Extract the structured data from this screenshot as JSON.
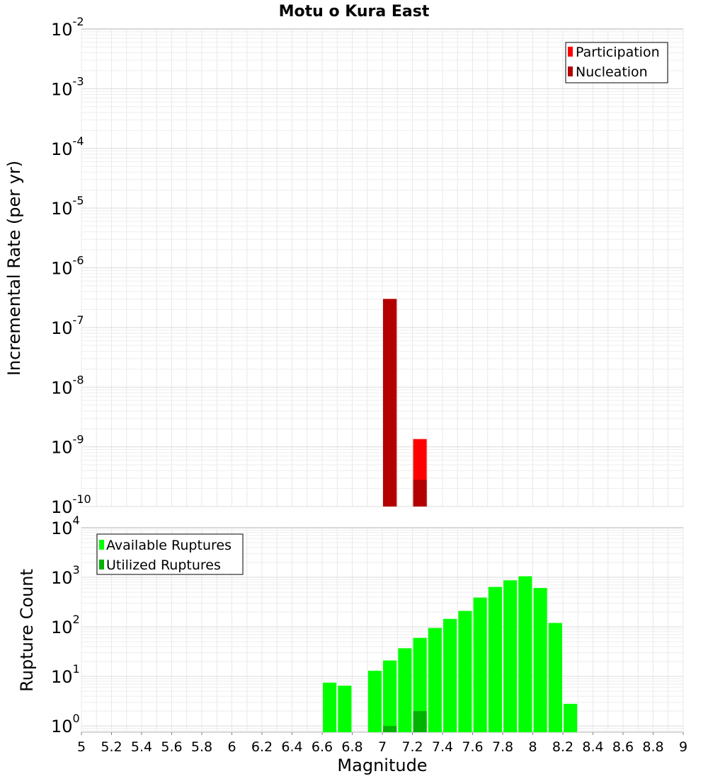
{
  "chart_data": [
    {
      "type": "bar",
      "title": "Motu o Kura East",
      "ylabel": "Incremental Rate (per yr)",
      "yscale": "log",
      "ylim": [
        1e-10,
        0.01
      ],
      "xlim": [
        5,
        9
      ],
      "y_tick_exponents": [
        "-2",
        "-3",
        "-4",
        "-5",
        "-6",
        "-7",
        "-8",
        "-9",
        "-10"
      ],
      "y_tick_base": "10",
      "legend_position": "top-right",
      "series": [
        {
          "name": "Participation",
          "color": "#ff0000",
          "x": [
            7.05,
            7.25
          ],
          "values": [
            3e-07,
            1.35e-09
          ]
        },
        {
          "name": "Nucleation",
          "color": "#b30000",
          "x": [
            7.05,
            7.25
          ],
          "values": [
            3e-07,
            2.8e-10
          ]
        }
      ]
    },
    {
      "type": "bar",
      "xlabel": "Magnitude",
      "ylabel": "Rupture Count",
      "yscale": "log",
      "ylim": [
        0.75,
        10000
      ],
      "xlim": [
        5,
        9
      ],
      "y_tick_exponents": [
        "4",
        "3",
        "2",
        "1",
        "0"
      ],
      "y_tick_base": "10",
      "x_tick_labels": [
        "5",
        "5.2",
        "5.4",
        "5.6",
        "5.8",
        "6",
        "6.2",
        "6.4",
        "6.6",
        "6.8",
        "7",
        "7.2",
        "7.4",
        "7.6",
        "7.8",
        "8",
        "8.2",
        "8.4",
        "8.6",
        "8.8",
        "9"
      ],
      "legend_position": "top-left",
      "series": [
        {
          "name": "Available Ruptures",
          "color": "#00ff00",
          "x": [
            6.65,
            6.75,
            6.95,
            7.05,
            7.15,
            7.25,
            7.35,
            7.45,
            7.55,
            7.65,
            7.75,
            7.85,
            7.95,
            8.05,
            8.15,
            8.25
          ],
          "values": [
            7.5,
            6.5,
            13,
            21,
            37,
            60,
            95,
            145,
            210,
            390,
            640,
            870,
            1050,
            610,
            120,
            2.8
          ]
        },
        {
          "name": "Utilized Ruptures",
          "color": "#00b300",
          "x": [
            7.05,
            7.25
          ],
          "values": [
            1,
            2
          ]
        }
      ]
    }
  ]
}
